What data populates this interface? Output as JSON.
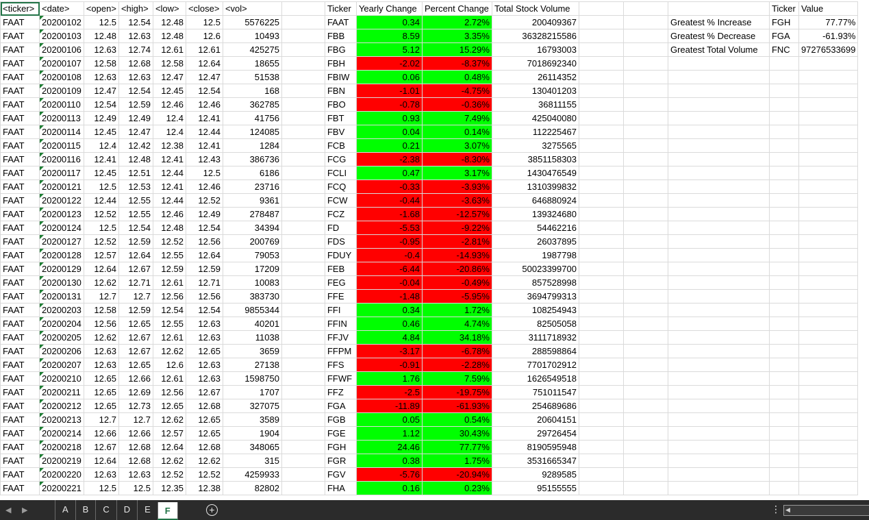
{
  "columns_widths": [],
  "headers": {
    "A": "<ticker>",
    "B": "<date>",
    "C": "<open>",
    "D": "<high>",
    "E": "<low>",
    "F": "<close>",
    "G": "<vol>",
    "I": "Ticker",
    "J": "Yearly Change",
    "K": "Percent Change",
    "L": "Total Stock Volume",
    "P": "Ticker",
    "Q": "Value"
  },
  "stock_rows": [
    [
      "FAAT",
      "20200102",
      "12.5",
      "12.54",
      "12.48",
      "12.5",
      "5576225"
    ],
    [
      "FAAT",
      "20200103",
      "12.48",
      "12.63",
      "12.48",
      "12.6",
      "10493"
    ],
    [
      "FAAT",
      "20200106",
      "12.63",
      "12.74",
      "12.61",
      "12.61",
      "425275"
    ],
    [
      "FAAT",
      "20200107",
      "12.58",
      "12.68",
      "12.58",
      "12.64",
      "18655"
    ],
    [
      "FAAT",
      "20200108",
      "12.63",
      "12.63",
      "12.47",
      "12.47",
      "51538"
    ],
    [
      "FAAT",
      "20200109",
      "12.47",
      "12.54",
      "12.45",
      "12.54",
      "168"
    ],
    [
      "FAAT",
      "20200110",
      "12.54",
      "12.59",
      "12.46",
      "12.46",
      "362785"
    ],
    [
      "FAAT",
      "20200113",
      "12.49",
      "12.49",
      "12.4",
      "12.41",
      "41756"
    ],
    [
      "FAAT",
      "20200114",
      "12.45",
      "12.47",
      "12.4",
      "12.44",
      "124085"
    ],
    [
      "FAAT",
      "20200115",
      "12.4",
      "12.42",
      "12.38",
      "12.41",
      "1284"
    ],
    [
      "FAAT",
      "20200116",
      "12.41",
      "12.48",
      "12.41",
      "12.43",
      "386736"
    ],
    [
      "FAAT",
      "20200117",
      "12.45",
      "12.51",
      "12.44",
      "12.5",
      "6186"
    ],
    [
      "FAAT",
      "20200121",
      "12.5",
      "12.53",
      "12.41",
      "12.46",
      "23716"
    ],
    [
      "FAAT",
      "20200122",
      "12.44",
      "12.55",
      "12.44",
      "12.52",
      "9361"
    ],
    [
      "FAAT",
      "20200123",
      "12.52",
      "12.55",
      "12.46",
      "12.49",
      "278487"
    ],
    [
      "FAAT",
      "20200124",
      "12.5",
      "12.54",
      "12.48",
      "12.54",
      "34394"
    ],
    [
      "FAAT",
      "20200127",
      "12.52",
      "12.59",
      "12.52",
      "12.56",
      "200769"
    ],
    [
      "FAAT",
      "20200128",
      "12.57",
      "12.64",
      "12.55",
      "12.64",
      "79053"
    ],
    [
      "FAAT",
      "20200129",
      "12.64",
      "12.67",
      "12.59",
      "12.59",
      "17209"
    ],
    [
      "FAAT",
      "20200130",
      "12.62",
      "12.71",
      "12.61",
      "12.71",
      "10083"
    ],
    [
      "FAAT",
      "20200131",
      "12.7",
      "12.7",
      "12.56",
      "12.56",
      "383730"
    ],
    [
      "FAAT",
      "20200203",
      "12.58",
      "12.59",
      "12.54",
      "12.54",
      "9855344"
    ],
    [
      "FAAT",
      "20200204",
      "12.56",
      "12.65",
      "12.55",
      "12.63",
      "40201"
    ],
    [
      "FAAT",
      "20200205",
      "12.62",
      "12.67",
      "12.61",
      "12.63",
      "11038"
    ],
    [
      "FAAT",
      "20200206",
      "12.63",
      "12.67",
      "12.62",
      "12.65",
      "3659"
    ],
    [
      "FAAT",
      "20200207",
      "12.63",
      "12.65",
      "12.6",
      "12.63",
      "27138"
    ],
    [
      "FAAT",
      "20200210",
      "12.65",
      "12.66",
      "12.61",
      "12.63",
      "1598750"
    ],
    [
      "FAAT",
      "20200211",
      "12.65",
      "12.69",
      "12.56",
      "12.67",
      "1707"
    ],
    [
      "FAAT",
      "20200212",
      "12.65",
      "12.73",
      "12.65",
      "12.68",
      "327075"
    ],
    [
      "FAAT",
      "20200213",
      "12.7",
      "12.7",
      "12.62",
      "12.65",
      "3589"
    ],
    [
      "FAAT",
      "20200214",
      "12.66",
      "12.66",
      "12.57",
      "12.65",
      "1904"
    ],
    [
      "FAAT",
      "20200218",
      "12.67",
      "12.68",
      "12.64",
      "12.68",
      "348065"
    ],
    [
      "FAAT",
      "20200219",
      "12.64",
      "12.68",
      "12.62",
      "12.62",
      "315"
    ],
    [
      "FAAT",
      "20200220",
      "12.63",
      "12.63",
      "12.52",
      "12.52",
      "4259933"
    ],
    [
      "FAAT",
      "20200221",
      "12.5",
      "12.5",
      "12.35",
      "12.38",
      "82802"
    ]
  ],
  "summary_rows": [
    [
      "FAAT",
      "0.34",
      "2.72%",
      "200409367"
    ],
    [
      "FBB",
      "8.59",
      "3.35%",
      "36328215586"
    ],
    [
      "FBG",
      "5.12",
      "15.29%",
      "16793003"
    ],
    [
      "FBH",
      "-2.02",
      "-8.37%",
      "7018692340"
    ],
    [
      "FBIW",
      "0.06",
      "0.48%",
      "26114352"
    ],
    [
      "FBN",
      "-1.01",
      "-4.75%",
      "130401203"
    ],
    [
      "FBO",
      "-0.78",
      "-0.36%",
      "36811155"
    ],
    [
      "FBT",
      "0.93",
      "7.49%",
      "425040080"
    ],
    [
      "FBV",
      "0.04",
      "0.14%",
      "112225467"
    ],
    [
      "FCB",
      "0.21",
      "3.07%",
      "3275565"
    ],
    [
      "FCG",
      "-2.38",
      "-8.30%",
      "3851158303"
    ],
    [
      "FCLI",
      "0.47",
      "3.17%",
      "1430476549"
    ],
    [
      "FCQ",
      "-0.33",
      "-3.93%",
      "1310399832"
    ],
    [
      "FCW",
      "-0.44",
      "-3.63%",
      "646880924"
    ],
    [
      "FCZ",
      "-1.68",
      "-12.57%",
      "139324680"
    ],
    [
      "FD",
      "-5.53",
      "-9.22%",
      "54462216"
    ],
    [
      "FDS",
      "-0.95",
      "-2.81%",
      "26037895"
    ],
    [
      "FDUY",
      "-0.4",
      "-14.93%",
      "1987798"
    ],
    [
      "FEB",
      "-6.44",
      "-20.86%",
      "50023399700"
    ],
    [
      "FEG",
      "-0.04",
      "-0.49%",
      "857528998"
    ],
    [
      "FFE",
      "-1.48",
      "-5.95%",
      "3694799313"
    ],
    [
      "FFI",
      "0.34",
      "1.72%",
      "108254943"
    ],
    [
      "FFIN",
      "0.46",
      "4.74%",
      "82505058"
    ],
    [
      "FFJV",
      "4.84",
      "34.18%",
      "3111718932"
    ],
    [
      "FFPM",
      "-3.17",
      "-6.78%",
      "288598864"
    ],
    [
      "FFS",
      "-0.91",
      "-2.28%",
      "7701702912"
    ],
    [
      "FFWF",
      "1.76",
      "7.59%",
      "1626549518"
    ],
    [
      "FFZ",
      "-2.5",
      "-19.75%",
      "751011547"
    ],
    [
      "FGA",
      "-11.89",
      "-61.93%",
      "254689686"
    ],
    [
      "FGB",
      "0.05",
      "0.54%",
      "20604151"
    ],
    [
      "FGE",
      "1.12",
      "30.43%",
      "29726454"
    ],
    [
      "FGH",
      "24.46",
      "77.77%",
      "8190595948"
    ],
    [
      "FGR",
      "0.38",
      "1.75%",
      "3531665347"
    ],
    [
      "FGV",
      "-5.76",
      "-20.94%",
      "9289585"
    ],
    [
      "FHA",
      "0.16",
      "0.23%",
      "95155555"
    ]
  ],
  "greatest": [
    [
      "Greatest % Increase",
      "FGH",
      "77.77%"
    ],
    [
      "Greatest % Decrease",
      "FGA",
      "-61.93%"
    ],
    [
      "Greatest Total Volume",
      "FNC",
      "97276533699"
    ]
  ],
  "colors": {
    "positive": "#00ff00",
    "negative": "#ff0000",
    "accent": "#217346"
  },
  "sheet_tabs": [
    "A",
    "B",
    "C",
    "D",
    "E",
    "F"
  ],
  "active_tab": "F",
  "icons": {
    "add_sheet": "plus-circle-icon",
    "prev": "chevron-left-icon",
    "next": "chevron-right-icon"
  }
}
